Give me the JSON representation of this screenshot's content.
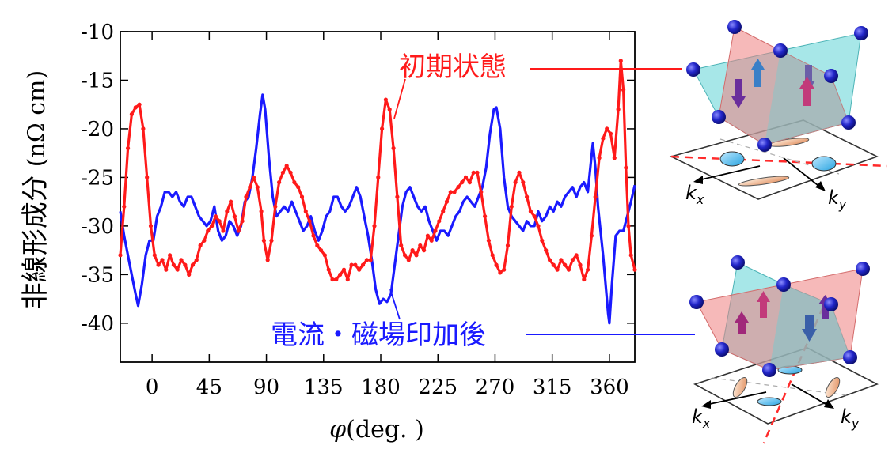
{
  "chart_data": {
    "type": "line",
    "title": "",
    "xlabel_symbol": "φ",
    "xlabel_unit": "(deg. )",
    "ylabel_jp": "非線形成分",
    "ylabel_unit": "(nΩ cm)",
    "xlim": [
      -25,
      380
    ],
    "ylim": [
      -44,
      -10
    ],
    "xticks": [
      0,
      45,
      90,
      135,
      180,
      225,
      270,
      315,
      360
    ],
    "yticks": [
      -10,
      -15,
      -20,
      -25,
      -30,
      -35,
      -40
    ],
    "grid": false,
    "series": [
      {
        "name": "初期状態",
        "color": "#ff1a1a",
        "markers": true,
        "points": [
          [
            -25,
            -33.0
          ],
          [
            -22,
            -28.0
          ],
          [
            -19,
            -22.0
          ],
          [
            -16,
            -18.5
          ],
          [
            -13,
            -17.8
          ],
          [
            -10,
            -17.5
          ],
          [
            -7,
            -20.0
          ],
          [
            -4,
            -25.0
          ],
          [
            -1,
            -30.0
          ],
          [
            2,
            -33.0
          ],
          [
            5,
            -34.0
          ],
          [
            8,
            -33.5
          ],
          [
            11,
            -34.5
          ],
          [
            14,
            -33.0
          ],
          [
            17,
            -34.0
          ],
          [
            20,
            -34.5
          ],
          [
            23,
            -33.5
          ],
          [
            26,
            -34.0
          ],
          [
            29,
            -35.0
          ],
          [
            32,
            -34.0
          ],
          [
            35,
            -33.5
          ],
          [
            38,
            -32.0
          ],
          [
            41,
            -31.5
          ],
          [
            44,
            -30.5
          ],
          [
            47,
            -30.0
          ],
          [
            50,
            -29.0
          ],
          [
            53,
            -29.5
          ],
          [
            56,
            -30.5
          ],
          [
            59,
            -28.5
          ],
          [
            62,
            -27.5
          ],
          [
            65,
            -29.0
          ],
          [
            68,
            -30.5
          ],
          [
            71,
            -29.5
          ],
          [
            74,
            -27.0
          ],
          [
            77,
            -26.0
          ],
          [
            80,
            -25.0
          ],
          [
            83,
            -26.0
          ],
          [
            86,
            -28.5
          ],
          [
            88,
            -31.5
          ],
          [
            91,
            -33.5
          ],
          [
            94,
            -31.5
          ],
          [
            97,
            -28.0
          ],
          [
            100,
            -25.5
          ],
          [
            103,
            -24.5
          ],
          [
            106,
            -23.8
          ],
          [
            109,
            -24.5
          ],
          [
            112,
            -25.5
          ],
          [
            115,
            -26.0
          ],
          [
            118,
            -27.0
          ],
          [
            121,
            -28.5
          ],
          [
            124,
            -29.5
          ],
          [
            127,
            -31.0
          ],
          [
            130,
            -32.0
          ],
          [
            133,
            -32.5
          ],
          [
            136,
            -33.0
          ],
          [
            139,
            -34.5
          ],
          [
            142,
            -35.5
          ],
          [
            145,
            -35.5
          ],
          [
            148,
            -35.0
          ],
          [
            151,
            -34.5
          ],
          [
            154,
            -35.5
          ],
          [
            157,
            -34.0
          ],
          [
            160,
            -34.0
          ],
          [
            163,
            -34.5
          ],
          [
            166,
            -34.0
          ],
          [
            169,
            -33.5
          ],
          [
            172,
            -33.5
          ],
          [
            175,
            -30.0
          ],
          [
            178,
            -25.0
          ],
          [
            181,
            -20.0
          ],
          [
            184,
            -17.0
          ],
          [
            187,
            -18.0
          ],
          [
            190,
            -22.0
          ],
          [
            193,
            -27.0
          ],
          [
            196,
            -32.0
          ],
          [
            199,
            -33.0
          ],
          [
            202,
            -33.5
          ],
          [
            205,
            -32.5
          ],
          [
            208,
            -33.0
          ],
          [
            211,
            -32.0
          ],
          [
            214,
            -32.5
          ],
          [
            217,
            -31.0
          ],
          [
            220,
            -31.5
          ],
          [
            223,
            -30.5
          ],
          [
            226,
            -29.5
          ],
          [
            229,
            -28.5
          ],
          [
            232,
            -27.5
          ],
          [
            235,
            -26.5
          ],
          [
            238,
            -26.5
          ],
          [
            241,
            -26.0
          ],
          [
            244,
            -25.5
          ],
          [
            247,
            -25.0
          ],
          [
            250,
            -25.5
          ],
          [
            253,
            -24.5
          ],
          [
            256,
            -24.5
          ],
          [
            259,
            -26.5
          ],
          [
            262,
            -29.0
          ],
          [
            265,
            -31.5
          ],
          [
            268,
            -33.0
          ],
          [
            271,
            -34.0
          ],
          [
            274,
            -34.8
          ],
          [
            277,
            -34.5
          ],
          [
            280,
            -32.0
          ],
          [
            283,
            -28.0
          ],
          [
            286,
            -25.5
          ],
          [
            289,
            -24.5
          ],
          [
            292,
            -25.5
          ],
          [
            295,
            -27.0
          ],
          [
            298,
            -28.5
          ],
          [
            301,
            -29.0
          ],
          [
            304,
            -30.0
          ],
          [
            307,
            -31.5
          ],
          [
            310,
            -32.5
          ],
          [
            313,
            -33.5
          ],
          [
            316,
            -34.0
          ],
          [
            319,
            -34.5
          ],
          [
            322,
            -33.5
          ],
          [
            325,
            -34.0
          ],
          [
            328,
            -34.5
          ],
          [
            331,
            -33.5
          ],
          [
            334,
            -33.0
          ],
          [
            337,
            -34.0
          ],
          [
            340,
            -35.5
          ],
          [
            343,
            -34.5
          ],
          [
            346,
            -31.0
          ],
          [
            349,
            -27.0
          ],
          [
            352,
            -23.0
          ],
          [
            355,
            -21.0
          ],
          [
            358,
            -20.0
          ],
          [
            361,
            -20.5
          ],
          [
            364,
            -23.0
          ],
          [
            367,
            -18.0
          ],
          [
            369,
            -13.0
          ],
          [
            371,
            -16.0
          ],
          [
            373,
            -24.0
          ],
          [
            375,
            -30.0
          ],
          [
            377,
            -33.0
          ],
          [
            380,
            -34.5
          ]
        ]
      },
      {
        "name": "電流・磁場印加後",
        "color": "#1a1aff",
        "markers": false,
        "points": [
          [
            -25,
            -28.5
          ],
          [
            -22,
            -31.0
          ],
          [
            -19,
            -33.0
          ],
          [
            -16,
            -35.0
          ],
          [
            -13,
            -37.0
          ],
          [
            -11,
            -38.2
          ],
          [
            -8,
            -36.0
          ],
          [
            -5,
            -33.0
          ],
          [
            -2,
            -31.5
          ],
          [
            1,
            -31.5
          ],
          [
            4,
            -29.0
          ],
          [
            7,
            -28.0
          ],
          [
            10,
            -26.5
          ],
          [
            13,
            -26.5
          ],
          [
            16,
            -27.0
          ],
          [
            19,
            -26.5
          ],
          [
            22,
            -27.5
          ],
          [
            25,
            -28.0
          ],
          [
            28,
            -27.0
          ],
          [
            31,
            -27.0
          ],
          [
            34,
            -28.0
          ],
          [
            37,
            -29.0
          ],
          [
            40,
            -29.5
          ],
          [
            43,
            -30.0
          ],
          [
            46,
            -29.5
          ],
          [
            49,
            -28.0
          ],
          [
            52,
            -30.5
          ],
          [
            55,
            -31.5
          ],
          [
            58,
            -31.0
          ],
          [
            61,
            -29.5
          ],
          [
            64,
            -30.0
          ],
          [
            67,
            -31.0
          ],
          [
            70,
            -30.0
          ],
          [
            73,
            -27.5
          ],
          [
            76,
            -27.0
          ],
          [
            79,
            -25.0
          ],
          [
            82,
            -22.0
          ],
          [
            85,
            -18.5
          ],
          [
            87,
            -16.5
          ],
          [
            89,
            -18.0
          ],
          [
            92,
            -23.0
          ],
          [
            95,
            -27.0
          ],
          [
            98,
            -29.0
          ],
          [
            101,
            -28.5
          ],
          [
            104,
            -28.0
          ],
          [
            107,
            -28.5
          ],
          [
            110,
            -27.5
          ],
          [
            113,
            -28.5
          ],
          [
            116,
            -29.5
          ],
          [
            119,
            -30.5
          ],
          [
            122,
            -30.0
          ],
          [
            125,
            -29.0
          ],
          [
            128,
            -30.5
          ],
          [
            131,
            -31.5
          ],
          [
            134,
            -30.5
          ],
          [
            137,
            -29.0
          ],
          [
            140,
            -28.5
          ],
          [
            143,
            -27.0
          ],
          [
            146,
            -27.0
          ],
          [
            149,
            -28.0
          ],
          [
            152,
            -28.5
          ],
          [
            155,
            -28.0
          ],
          [
            158,
            -27.0
          ],
          [
            161,
            -26.0
          ],
          [
            164,
            -27.0
          ],
          [
            167,
            -29.0
          ],
          [
            170,
            -31.0
          ],
          [
            173,
            -33.5
          ],
          [
            176,
            -36.5
          ],
          [
            179,
            -38.0
          ],
          [
            182,
            -37.5
          ],
          [
            185,
            -37.8
          ],
          [
            188,
            -37.0
          ],
          [
            191,
            -34.0
          ],
          [
            194,
            -31.0
          ],
          [
            197,
            -28.0
          ],
          [
            200,
            -26.5
          ],
          [
            203,
            -26.0
          ],
          [
            206,
            -27.0
          ],
          [
            209,
            -28.0
          ],
          [
            212,
            -28.5
          ],
          [
            215,
            -28.0
          ],
          [
            218,
            -29.5
          ],
          [
            221,
            -30.5
          ],
          [
            224,
            -31.5
          ],
          [
            227,
            -30.5
          ],
          [
            230,
            -30.5
          ],
          [
            233,
            -31.0
          ],
          [
            236,
            -30.0
          ],
          [
            239,
            -29.0
          ],
          [
            242,
            -28.5
          ],
          [
            245,
            -27.5
          ],
          [
            248,
            -27.0
          ],
          [
            251,
            -27.5
          ],
          [
            254,
            -28.0
          ],
          [
            257,
            -27.0
          ],
          [
            260,
            -26.0
          ],
          [
            263,
            -24.0
          ],
          [
            266,
            -20.5
          ],
          [
            269,
            -18.0
          ],
          [
            271,
            -17.8
          ],
          [
            274,
            -20.0
          ],
          [
            277,
            -25.0
          ],
          [
            280,
            -28.0
          ],
          [
            283,
            -29.0
          ],
          [
            286,
            -29.5
          ],
          [
            289,
            -30.0
          ],
          [
            292,
            -30.5
          ],
          [
            295,
            -29.5
          ],
          [
            298,
            -30.0
          ],
          [
            301,
            -30.0
          ],
          [
            304,
            -28.5
          ],
          [
            307,
            -29.5
          ],
          [
            310,
            -29.0
          ],
          [
            313,
            -28.0
          ],
          [
            316,
            -28.5
          ],
          [
            319,
            -27.5
          ],
          [
            322,
            -28.0
          ],
          [
            325,
            -27.0
          ],
          [
            328,
            -26.5
          ],
          [
            331,
            -26.0
          ],
          [
            334,
            -27.0
          ],
          [
            337,
            -26.0
          ],
          [
            340,
            -25.5
          ],
          [
            343,
            -26.5
          ],
          [
            345,
            -24.0
          ],
          [
            347,
            -21.5
          ],
          [
            349,
            -24.0
          ],
          [
            351,
            -28.0
          ],
          [
            353,
            -30.5
          ],
          [
            355,
            -33.0
          ],
          [
            357,
            -36.0
          ],
          [
            359,
            -39.0
          ],
          [
            360,
            -40.0
          ],
          [
            362,
            -36.0
          ],
          [
            365,
            -31.0
          ],
          [
            368,
            -30.5
          ],
          [
            371,
            -30.5
          ],
          [
            374,
            -29.0
          ],
          [
            377,
            -27.5
          ],
          [
            380,
            -25.8
          ]
        ]
      }
    ],
    "annotations": [
      {
        "text": "初期状態",
        "color": "#ff1a1a"
      },
      {
        "text": "電流・磁場印加後",
        "color": "#1a1aff"
      }
    ]
  },
  "diagrams": [
    {
      "kx_label": "k",
      "kx_sub": "x",
      "ky_label": "k",
      "ky_sub": "y"
    },
    {
      "kx_label": "k",
      "kx_sub": "x",
      "ky_label": "k",
      "ky_sub": "y"
    }
  ]
}
